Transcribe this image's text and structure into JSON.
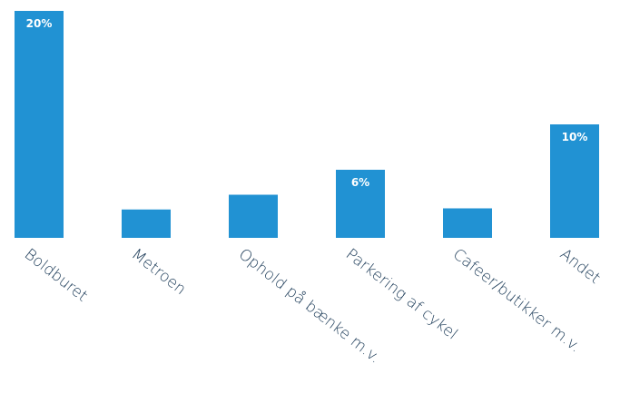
{
  "chart_data": {
    "type": "bar",
    "categories": [
      "Boldburet",
      "Metroen",
      "Ophold på bænke m.v.",
      "Parkering af cykel",
      "Cafeer/butikker m.v.",
      "Andet"
    ],
    "values": [
      20,
      2.5,
      3.8,
      6,
      2.6,
      10
    ],
    "value_labels": [
      "20%",
      null,
      null,
      "6%",
      null,
      "10%"
    ],
    "color": "#2192d3"
  }
}
